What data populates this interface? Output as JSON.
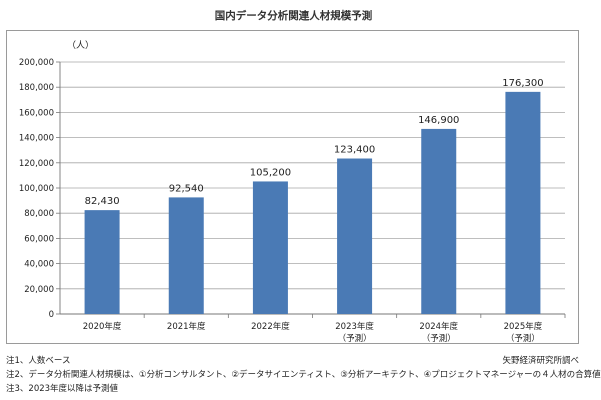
{
  "title": "国内データ分析関連人材規模予測",
  "unit_label": "（人）",
  "chart_data": {
    "type": "bar",
    "categories": [
      "2020年度",
      "2021年度",
      "2022年度",
      "2023年度",
      "2024年度",
      "2025年度"
    ],
    "category_sublabels": [
      "",
      "",
      "",
      "（予測）",
      "（予測）",
      "（予測）"
    ],
    "values": [
      82430,
      92540,
      105200,
      123400,
      146900,
      176300
    ],
    "data_labels": [
      "82,430",
      "92,540",
      "105,200",
      "123,400",
      "146,900",
      "176,300"
    ],
    "ylim": [
      0,
      200000
    ],
    "yticks": [
      0,
      20000,
      40000,
      60000,
      80000,
      100000,
      120000,
      140000,
      160000,
      180000,
      200000
    ],
    "ytick_labels": [
      "0",
      "20,000",
      "40,000",
      "60,000",
      "80,000",
      "100,000",
      "120,000",
      "140,000",
      "160,000",
      "180,000",
      "200,000"
    ],
    "grid": true,
    "legend": false,
    "bar_color": "#4a7ab5"
  },
  "notes": [
    "注1、人数ベース",
    "注2、データ分析関連人材規模は、①分析コンサルタント、②データサイエンティスト、③分析アーキテクト、④プロジェクトマネージャーの４人材の合算値",
    "注3、2023年度以降は予測値"
  ],
  "source": "矢野経済研究所調べ"
}
